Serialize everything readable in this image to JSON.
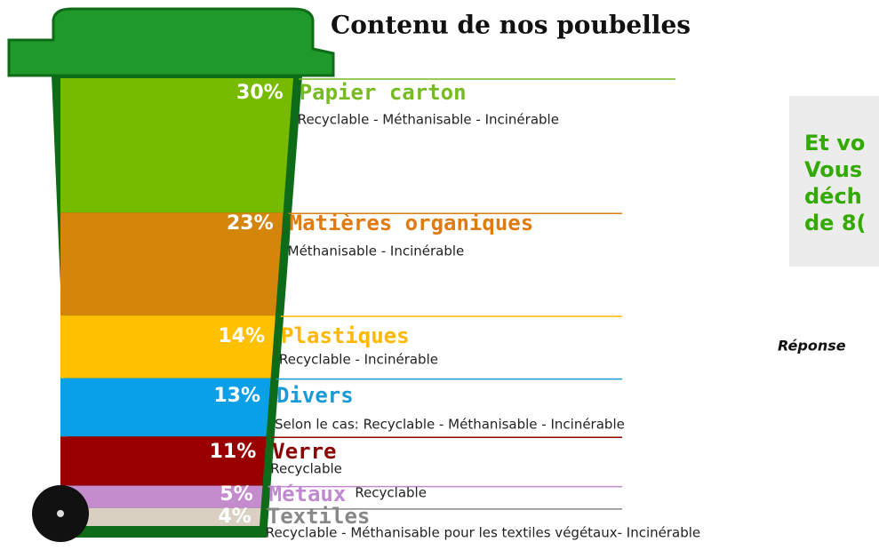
{
  "chart_data": {
    "type": "bin",
    "title": "Contenu de nos poubelles",
    "categories": [
      "Papier carton",
      "Matières organiques",
      "Plastiques",
      "Divers",
      "Verre",
      "Métaux",
      "Textiles"
    ],
    "values": [
      30,
      23,
      14,
      13,
      11,
      5,
      4
    ],
    "value_labels": [
      "30%",
      "23%",
      "14%",
      "13%",
      "11%",
      "5%",
      "4%"
    ],
    "descriptions": [
      "Recyclable - Méthanisable - Incinérable",
      "Méthanisable - Incinérable",
      "Recyclable - Incinérable",
      "Selon le cas: Recyclable - Méthanisable - Incinérable",
      "Recyclable",
      "Recyclable",
      "Recyclable - Méthanisable pour les textiles végétaux- Incinérable"
    ],
    "colors": [
      "#77bb00",
      "#d4860b",
      "#ffc000",
      "#0aa0e8",
      "#990000",
      "#c48ccc",
      "#d9d0c2"
    ],
    "label_colors": [
      "#77bb22",
      "#e07b10",
      "#ffb800",
      "#1a9ad6",
      "#8b0000",
      "#c08ad0",
      "#888888"
    ]
  },
  "aside": {
    "lines": [
      "Et vo",
      "Vous",
      "déch",
      "de 8("
    ],
    "answer": "Réponse"
  }
}
